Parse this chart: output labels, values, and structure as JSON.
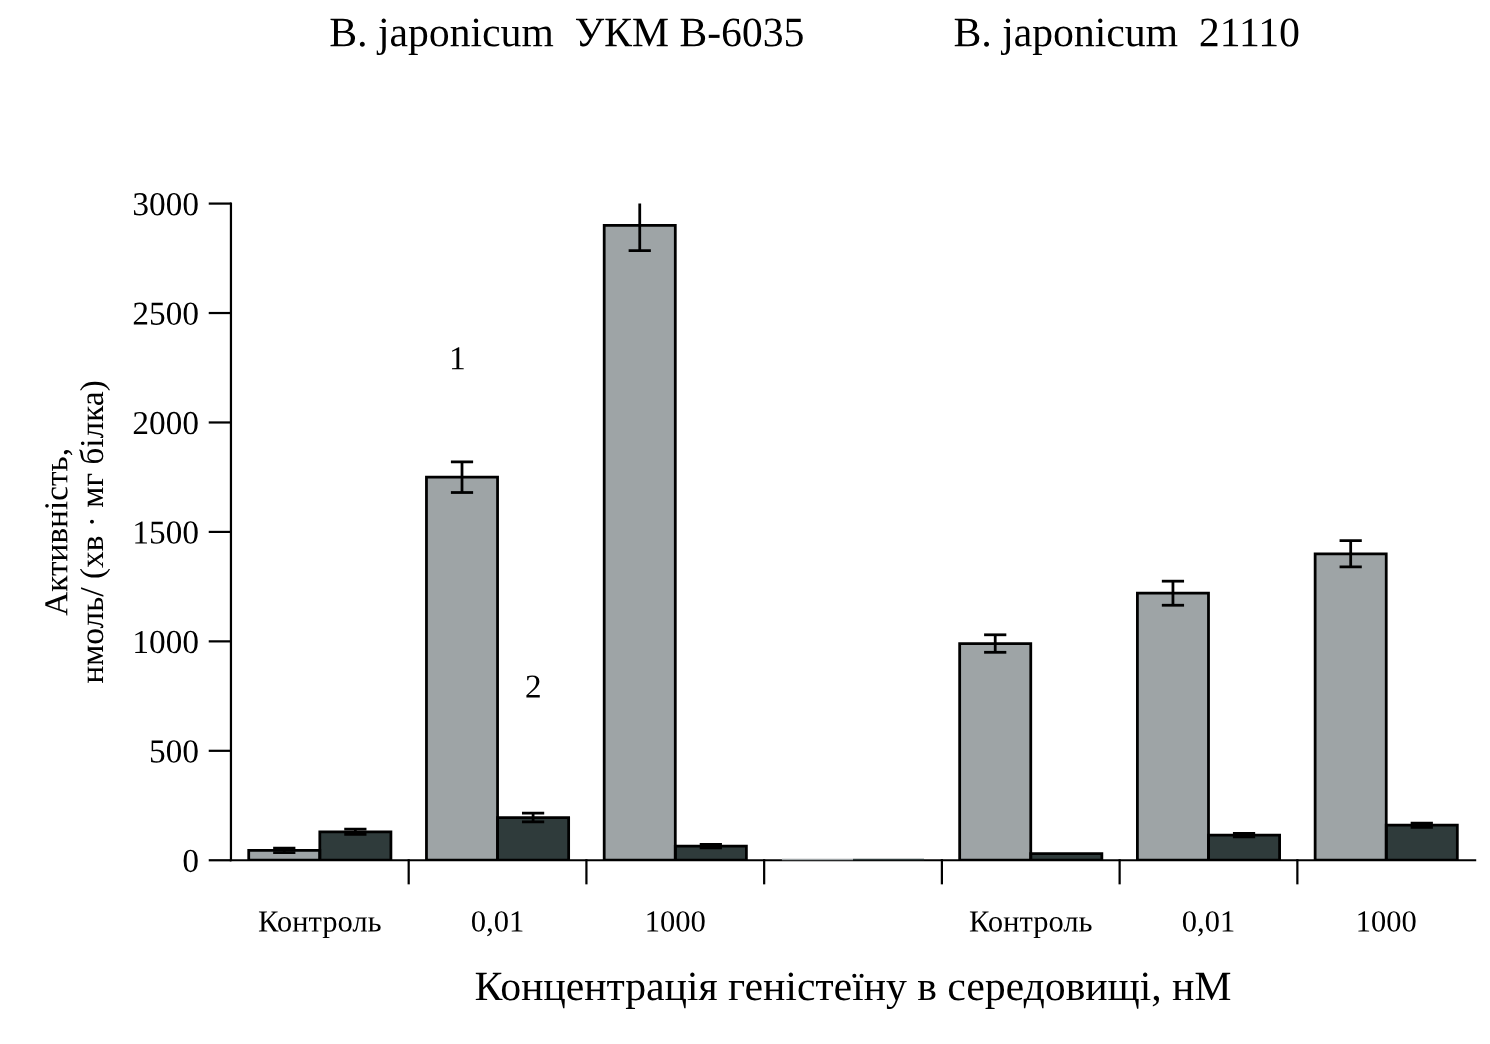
{
  "chart_data": {
    "type": "bar",
    "xlabel": "Концентрація геністеїну в середовищі, нМ",
    "ylabel": "Активність,\nнмоль/ (хв · мг білка)",
    "categories": [
      "Контроль",
      "0,01",
      "1000",
      null,
      "Контроль",
      "0,01",
      "1000"
    ],
    "series": [
      {
        "color": "#9ea4a6",
        "values": [
          45,
          1750,
          2900,
          0,
          990,
          1220,
          1400
        ],
        "errors": [
          10,
          70,
          115,
          null,
          40,
          55,
          60
        ]
      },
      {
        "color": "#2f3b3b",
        "values": [
          130,
          195,
          65,
          0,
          30,
          115,
          160
        ],
        "errors": [
          12,
          20,
          8,
          null,
          null,
          8,
          10
        ]
      }
    ],
    "annotations": [
      "B. japonicum  УКМ B-6035",
      "B. japonicum  21110",
      "1",
      "2"
    ],
    "ylim": [
      0,
      3000
    ],
    "yticks": [
      0,
      500,
      1000,
      1500,
      2000,
      2500,
      3000
    ],
    "grid": false,
    "legend": false
  }
}
